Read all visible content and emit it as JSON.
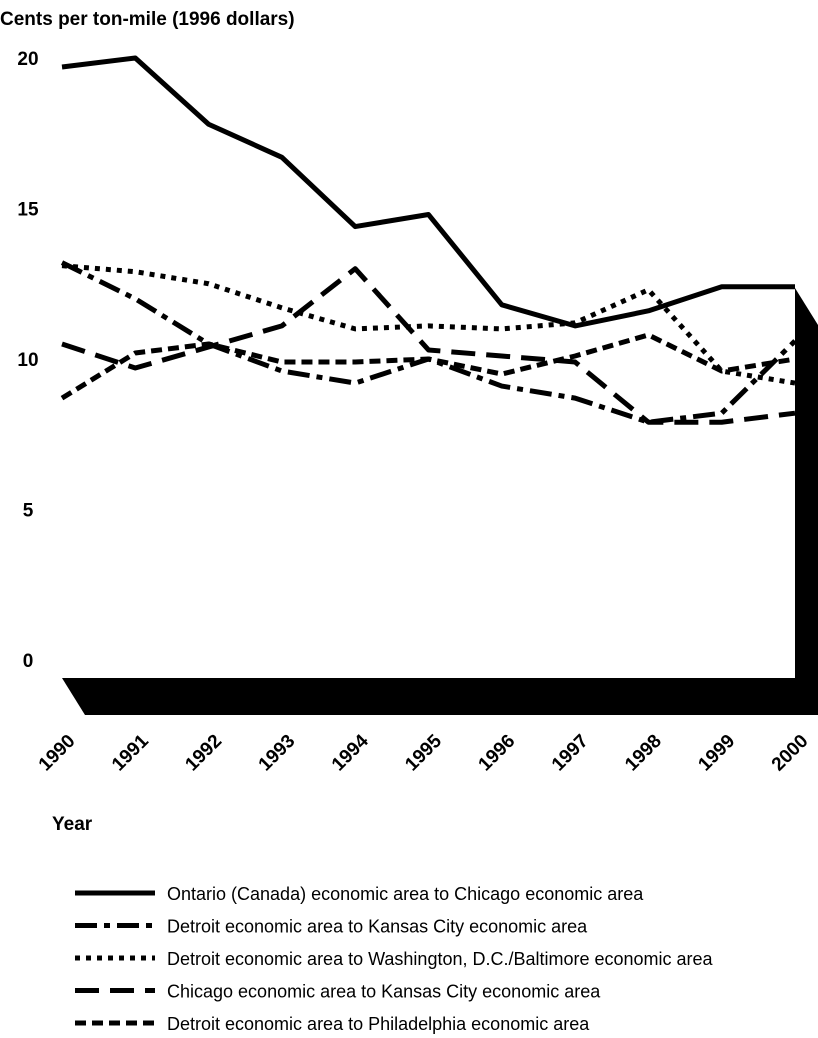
{
  "chart_data": {
    "type": "line",
    "title": "Cents per ton-mile (1996 dollars)",
    "x_label": "Year",
    "x": [
      1990,
      1991,
      1992,
      1993,
      1994,
      1995,
      1996,
      1997,
      1998,
      1999,
      2000
    ],
    "xlim": [
      1990,
      2000
    ],
    "xticks": [
      1990,
      1991,
      1992,
      1993,
      1994,
      1995,
      1996,
      1997,
      1998,
      1999,
      2000
    ],
    "ylim": [
      0,
      20
    ],
    "yticks": [
      0,
      5,
      10,
      15,
      20
    ],
    "grid": false,
    "series": [
      {
        "name": "Ontario (Canada) economic area to Chicago economic area",
        "color": "#000000",
        "dash": "solid",
        "values": [
          19.7,
          20.0,
          17.8,
          16.7,
          14.4,
          14.8,
          11.8,
          11.1,
          11.6,
          12.4,
          12.4
        ]
      },
      {
        "name": "Detroit economic area to Kansas City economic area",
        "color": "#000000",
        "dash": "dashdot",
        "values": [
          13.2,
          12.0,
          10.5,
          9.6,
          9.2,
          10.0,
          9.1,
          8.7,
          7.9,
          8.2,
          10.6
        ]
      },
      {
        "name": "Detroit economic area to Washington, D.C./Baltimore economic area",
        "color": "#000000",
        "dash": "dotted",
        "values": [
          13.1,
          12.9,
          12.5,
          11.7,
          11.0,
          11.1,
          11.0,
          11.2,
          12.3,
          9.6,
          9.2
        ]
      },
      {
        "name": "Chicago economic area to Kansas City economic area",
        "color": "#000000",
        "dash": "longdash",
        "values": [
          10.5,
          9.7,
          10.4,
          11.1,
          13.0,
          10.3,
          10.1,
          9.9,
          7.9,
          7.9,
          8.2
        ]
      },
      {
        "name": "Detroit economic area to Philadelphia economic area",
        "color": "#000000",
        "dash": "shortdash",
        "values": [
          8.7,
          10.2,
          10.5,
          9.9,
          9.9,
          10.0,
          9.5,
          10.1,
          10.8,
          9.6,
          10.0
        ]
      }
    ]
  }
}
